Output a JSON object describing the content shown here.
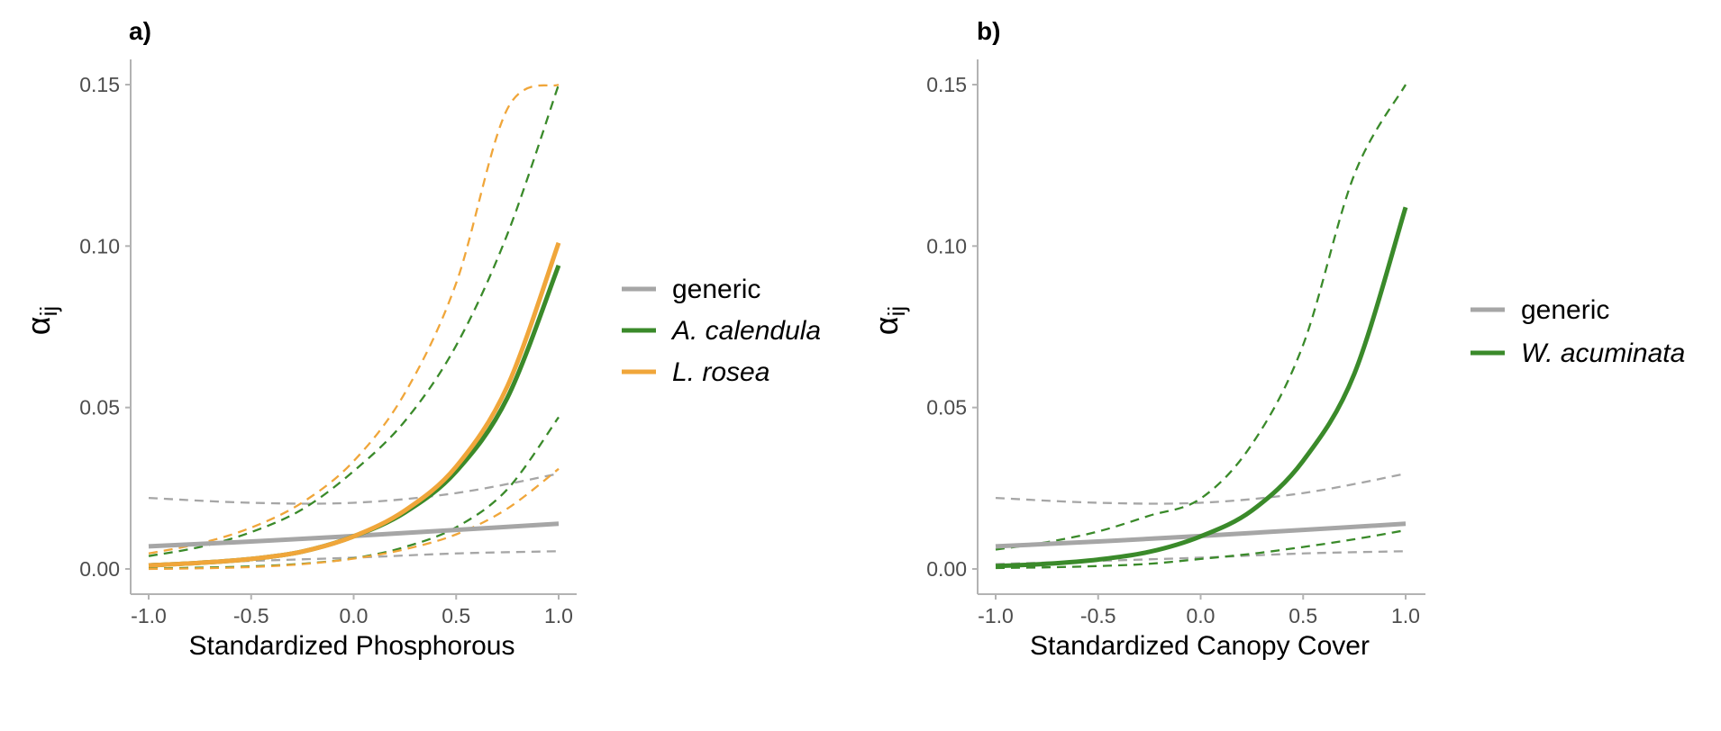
{
  "colors": {
    "generic": "#a6a6a6",
    "A. calendula": "#3a8a2a",
    "L. rosea": "#f0a63a",
    "W. acuminata": "#3a8a2a",
    "axis": "#b3b3b3",
    "tick_text": "#4d4d4d"
  },
  "chart_data": [
    {
      "type": "line",
      "panel_label": "a)",
      "xlabel": "Standardized Phosphorous",
      "ylabel": "α",
      "ylabel_subscript": "ij",
      "xlim": [
        -1.0,
        1.0
      ],
      "ylim": [
        0.0,
        0.15
      ],
      "xticks": [
        -1.0,
        -0.5,
        0.0,
        0.5,
        1.0
      ],
      "xtick_labels": [
        "-1.0",
        "-0.5",
        "0.0",
        "0.5",
        "1.0"
      ],
      "yticks": [
        0.0,
        0.05,
        0.1,
        0.15
      ],
      "ytick_labels": [
        "0.00",
        "0.05",
        "0.10",
        "0.15"
      ],
      "grid": false,
      "legend_position": "right",
      "series": [
        {
          "name": "generic",
          "color_key": "generic",
          "x": [
            -1.0,
            -0.5,
            0.0,
            0.5,
            1.0
          ],
          "mean": [
            0.007,
            0.0085,
            0.0102,
            0.0121,
            0.014
          ],
          "lower": [
            0.0015,
            0.0025,
            0.0035,
            0.0048,
            0.0055
          ],
          "upper": [
            0.022,
            0.0205,
            0.0205,
            0.0235,
            0.0295
          ]
        },
        {
          "name": "A. calendula",
          "color_key": "A. calendula",
          "x": [
            -1.0,
            -0.75,
            -0.5,
            -0.25,
            0.0,
            0.25,
            0.5,
            0.75,
            1.0
          ],
          "mean": [
            0.0011,
            0.0019,
            0.0031,
            0.0054,
            0.0101,
            0.0175,
            0.0302,
            0.053,
            0.094
          ],
          "lower": [
            0.0001,
            0.0004,
            0.0008,
            0.0016,
            0.0033,
            0.0068,
            0.0129,
            0.0247,
            0.047
          ],
          "upper": [
            0.004,
            0.0068,
            0.0114,
            0.0185,
            0.0303,
            0.0458,
            0.0692,
            0.1037,
            0.15
          ]
        },
        {
          "name": "L. rosea",
          "color_key": "L. rosea",
          "x": [
            -1.0,
            -0.75,
            -0.5,
            -0.25,
            0.0,
            0.25,
            0.5,
            0.75,
            1.0
          ],
          "mean": [
            0.0011,
            0.0019,
            0.0031,
            0.0054,
            0.0101,
            0.0181,
            0.0317,
            0.0566,
            0.101
          ],
          "lower": [
            0.0,
            0.0002,
            0.0006,
            0.0015,
            0.0032,
            0.0061,
            0.0107,
            0.0187,
            0.031
          ],
          "upper": [
            0.0048,
            0.0079,
            0.0128,
            0.0206,
            0.0334,
            0.0545,
            0.0885,
            0.1425,
            0.15
          ]
        }
      ]
    },
    {
      "type": "line",
      "panel_label": "b)",
      "xlabel": "Standardized Canopy Cover",
      "ylabel": "α",
      "ylabel_subscript": "ij",
      "xlim": [
        -1.0,
        1.0
      ],
      "ylim": [
        0.0,
        0.15
      ],
      "xticks": [
        -1.0,
        -0.5,
        0.0,
        0.5,
        1.0
      ],
      "xtick_labels": [
        "-1.0",
        "-0.5",
        "0.0",
        "0.5",
        "1.0"
      ],
      "yticks": [
        0.0,
        0.05,
        0.1,
        0.15
      ],
      "ytick_labels": [
        "0.00",
        "0.05",
        "0.10",
        "0.15"
      ],
      "grid": false,
      "legend_position": "right",
      "series": [
        {
          "name": "generic",
          "color_key": "generic",
          "x": [
            -1.0,
            -0.5,
            0.0,
            0.5,
            1.0
          ],
          "mean": [
            0.007,
            0.0085,
            0.0102,
            0.0121,
            0.014
          ],
          "lower": [
            0.0015,
            0.0025,
            0.0035,
            0.0048,
            0.0055
          ],
          "upper": [
            0.022,
            0.0205,
            0.0205,
            0.0235,
            0.0295
          ]
        },
        {
          "name": "W. acuminata",
          "color_key": "W. acuminata",
          "x": [
            -1.0,
            -0.75,
            -0.5,
            -0.25,
            0.0,
            0.25,
            0.5,
            0.75,
            1.0
          ],
          "mean": [
            0.0009,
            0.0016,
            0.0029,
            0.0053,
            0.0101,
            0.0181,
            0.0335,
            0.0605,
            0.112
          ],
          "lower": [
            0.0003,
            0.0005,
            0.0009,
            0.0016,
            0.0031,
            0.0047,
            0.0068,
            0.0092,
            0.012
          ],
          "upper": [
            0.006,
            0.0083,
            0.0116,
            0.0165,
            0.0218,
            0.0386,
            0.0694,
            0.1222,
            0.15
          ]
        }
      ]
    }
  ]
}
